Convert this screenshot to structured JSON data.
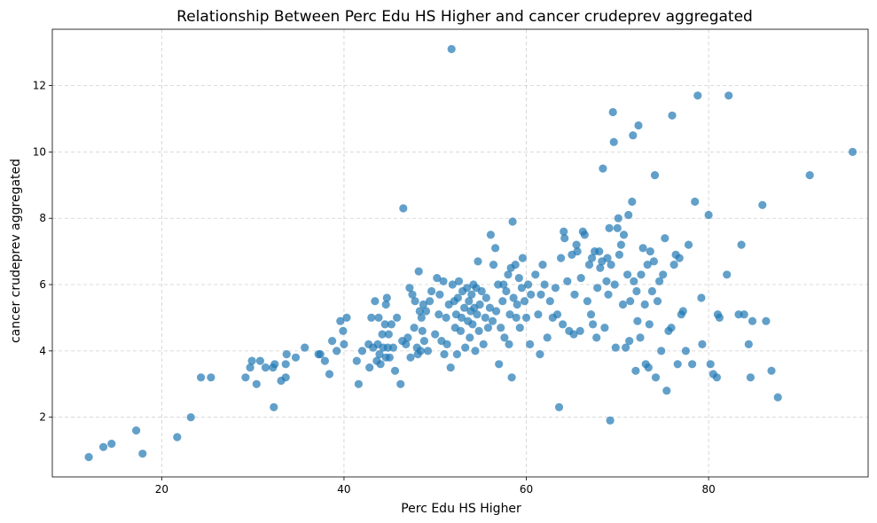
{
  "chart_data": {
    "type": "scatter",
    "title": "Relationship Between Perc Edu HS Higher and cancer crudeprev aggregated",
    "xlabel": "Perc Edu HS Higher",
    "ylabel": "cancer crudeprev aggregated",
    "xlim": [
      8,
      97.5
    ],
    "ylim": [
      0.2,
      13.7
    ],
    "xticks": [
      20,
      40,
      60,
      80
    ],
    "yticks": [
      2,
      4,
      6,
      8,
      10,
      12
    ],
    "grid": true,
    "marker_color": "#1f77b4",
    "marker_opacity": 0.7,
    "points": [
      [
        12,
        0.8
      ],
      [
        13.6,
        1.1
      ],
      [
        14.5,
        1.2
      ],
      [
        17.2,
        1.6
      ],
      [
        17.9,
        0.9
      ],
      [
        21.7,
        1.4
      ],
      [
        23.2,
        2.0
      ],
      [
        24.3,
        3.2
      ],
      [
        25.4,
        3.2
      ],
      [
        29.2,
        3.2
      ],
      [
        29.7,
        3.5
      ],
      [
        29.9,
        3.7
      ],
      [
        30.4,
        3.0
      ],
      [
        30.8,
        3.7
      ],
      [
        31.4,
        3.5
      ],
      [
        32.2,
        3.5
      ],
      [
        32.3,
        2.3
      ],
      [
        32.4,
        3.6
      ],
      [
        33.1,
        3.1
      ],
      [
        33.6,
        3.2
      ],
      [
        33.6,
        3.6
      ],
      [
        33.7,
        3.9
      ],
      [
        34.7,
        3.8
      ],
      [
        35.7,
        4.1
      ],
      [
        37.2,
        3.9
      ],
      [
        37.4,
        3.9
      ],
      [
        37.9,
        3.7
      ],
      [
        38.4,
        3.3
      ],
      [
        38.7,
        4.3
      ],
      [
        39.2,
        4.0
      ],
      [
        39.6,
        4.9
      ],
      [
        39.9,
        4.6
      ],
      [
        40.0,
        4.2
      ],
      [
        40.3,
        5.0
      ],
      [
        41.4,
        3.7
      ],
      [
        41.6,
        3.0
      ],
      [
        42.0,
        4.0
      ],
      [
        42.7,
        4.2
      ],
      [
        42.8,
        3.5
      ],
      [
        43.0,
        5.0
      ],
      [
        43.2,
        4.1
      ],
      [
        43.4,
        5.5
      ],
      [
        43.6,
        3.7
      ],
      [
        43.7,
        4.2
      ],
      [
        43.8,
        5.0
      ],
      [
        43.9,
        3.9
      ],
      [
        44.0,
        3.6
      ],
      [
        44.2,
        4.5
      ],
      [
        44.3,
        4.1
      ],
      [
        44.5,
        4.8
      ],
      [
        44.6,
        5.4
      ],
      [
        44.6,
        3.8
      ],
      [
        44.7,
        5.6
      ],
      [
        44.8,
        4.1
      ],
      [
        44.9,
        4.5
      ],
      [
        45.0,
        3.8
      ],
      [
        45.2,
        4.8
      ],
      [
        45.4,
        4.1
      ],
      [
        45.6,
        3.4
      ],
      [
        45.8,
        5.0
      ],
      [
        46.2,
        3.0
      ],
      [
        46.4,
        4.3
      ],
      [
        46.5,
        8.3
      ],
      [
        46.8,
        4.2
      ],
      [
        47.0,
        4.4
      ],
      [
        47.2,
        5.9
      ],
      [
        47.3,
        3.8
      ],
      [
        47.5,
        5.7
      ],
      [
        47.7,
        4.7
      ],
      [
        47.8,
        5.5
      ],
      [
        48.0,
        4.1
      ],
      [
        48.1,
        3.9
      ],
      [
        48.2,
        6.4
      ],
      [
        48.3,
        5.2
      ],
      [
        48.4,
        4.0
      ],
      [
        48.5,
        5.0
      ],
      [
        48.6,
        4.6
      ],
      [
        48.7,
        5.4
      ],
      [
        48.8,
        4.3
      ],
      [
        49.0,
        5.2
      ],
      [
        49.2,
        4.0
      ],
      [
        49.4,
        5.5
      ],
      [
        49.6,
        5.8
      ],
      [
        50.0,
        4.5
      ],
      [
        50.2,
        6.2
      ],
      [
        50.4,
        5.1
      ],
      [
        50.5,
        5.7
      ],
      [
        50.7,
        4.3
      ],
      [
        50.9,
        6.1
      ],
      [
        51.0,
        3.9
      ],
      [
        51.2,
        5.0
      ],
      [
        51.3,
        4.2
      ],
      [
        51.5,
        5.4
      ],
      [
        51.7,
        3.5
      ],
      [
        51.8,
        13.1
      ],
      [
        51.9,
        6.0
      ],
      [
        52.1,
        5.5
      ],
      [
        52.2,
        4.7
      ],
      [
        52.3,
        5.1
      ],
      [
        52.4,
        3.9
      ],
      [
        52.5,
        5.6
      ],
      [
        52.6,
        6.1
      ],
      [
        52.8,
        4.6
      ],
      [
        52.9,
        5.0
      ],
      [
        53.0,
        5.8
      ],
      [
        53.2,
        5.3
      ],
      [
        53.3,
        4.1
      ],
      [
        53.5,
        5.9
      ],
      [
        53.6,
        4.9
      ],
      [
        53.7,
        5.5
      ],
      [
        53.8,
        4.4
      ],
      [
        53.9,
        5.2
      ],
      [
        54.0,
        5.7
      ],
      [
        54.1,
        4.8
      ],
      [
        54.2,
        6.0
      ],
      [
        54.3,
        5.3
      ],
      [
        54.4,
        4.0
      ],
      [
        54.5,
        5.9
      ],
      [
        54.6,
        5.1
      ],
      [
        54.7,
        6.7
      ],
      [
        54.8,
        4.6
      ],
      [
        54.9,
        5.4
      ],
      [
        55.1,
        5.8
      ],
      [
        55.3,
        4.2
      ],
      [
        55.5,
        5.0
      ],
      [
        55.6,
        5.6
      ],
      [
        55.8,
        4.7
      ],
      [
        56.0,
        5.3
      ],
      [
        56.1,
        7.5
      ],
      [
        56.3,
        4.9
      ],
      [
        56.4,
        6.6
      ],
      [
        56.6,
        7.1
      ],
      [
        56.7,
        5.2
      ],
      [
        56.9,
        6.0
      ],
      [
        57.0,
        3.6
      ],
      [
        57.2,
        4.7
      ],
      [
        57.4,
        5.5
      ],
      [
        57.5,
        6.0
      ],
      [
        57.6,
        4.4
      ],
      [
        57.8,
        5.8
      ],
      [
        58.0,
        6.3
      ],
      [
        58.1,
        4.2
      ],
      [
        58.2,
        5.1
      ],
      [
        58.3,
        6.5
      ],
      [
        58.4,
        3.2
      ],
      [
        58.5,
        7.9
      ],
      [
        58.6,
        5.6
      ],
      [
        58.8,
        6.6
      ],
      [
        58.9,
        5.0
      ],
      [
        59.0,
        5.4
      ],
      [
        59.2,
        6.2
      ],
      [
        59.3,
        4.7
      ],
      [
        59.5,
        5.9
      ],
      [
        59.6,
        6.8
      ],
      [
        59.8,
        5.5
      ],
      [
        60.0,
        5.0
      ],
      [
        60.2,
        6.0
      ],
      [
        60.4,
        4.2
      ],
      [
        60.5,
        5.7
      ],
      [
        61.0,
        6.3
      ],
      [
        61.3,
        5.1
      ],
      [
        61.5,
        3.9
      ],
      [
        61.6,
        5.7
      ],
      [
        61.8,
        6.6
      ],
      [
        62.0,
        6.0
      ],
      [
        62.3,
        4.4
      ],
      [
        62.6,
        5.5
      ],
      [
        62.9,
        5.0
      ],
      [
        63.2,
        5.9
      ],
      [
        63.4,
        5.1
      ],
      [
        63.6,
        2.3
      ],
      [
        63.8,
        6.8
      ],
      [
        64.0,
        4.8
      ],
      [
        64.1,
        7.6
      ],
      [
        64.2,
        7.4
      ],
      [
        64.5,
        6.1
      ],
      [
        64.7,
        4.6
      ],
      [
        65.0,
        6.9
      ],
      [
        65.2,
        4.5
      ],
      [
        65.3,
        5.7
      ],
      [
        65.5,
        7.2
      ],
      [
        65.6,
        7.0
      ],
      [
        65.9,
        4.6
      ],
      [
        66.0,
        6.2
      ],
      [
        66.2,
        7.6
      ],
      [
        66.4,
        7.5
      ],
      [
        66.7,
        5.5
      ],
      [
        66.9,
        6.6
      ],
      [
        67.1,
        5.1
      ],
      [
        67.2,
        6.8
      ],
      [
        67.3,
        4.8
      ],
      [
        67.5,
        7.0
      ],
      [
        67.7,
        4.4
      ],
      [
        67.8,
        5.9
      ],
      [
        68.0,
        7.0
      ],
      [
        68.1,
        6.5
      ],
      [
        68.3,
        6.7
      ],
      [
        68.4,
        9.5
      ],
      [
        68.6,
        4.7
      ],
      [
        68.8,
        6.1
      ],
      [
        68.9,
        6.8
      ],
      [
        69.0,
        5.7
      ],
      [
        69.1,
        7.7
      ],
      [
        69.2,
        1.9
      ],
      [
        69.3,
        6.6
      ],
      [
        69.5,
        11.2
      ],
      [
        69.6,
        10.3
      ],
      [
        69.7,
        6.0
      ],
      [
        69.8,
        4.1
      ],
      [
        70.0,
        7.7
      ],
      [
        70.1,
        8.0
      ],
      [
        70.2,
        6.9
      ],
      [
        70.4,
        7.2
      ],
      [
        70.6,
        5.4
      ],
      [
        70.7,
        7.5
      ],
      [
        70.9,
        4.1
      ],
      [
        71.1,
        6.3
      ],
      [
        71.2,
        8.1
      ],
      [
        71.3,
        4.3
      ],
      [
        71.4,
        5.5
      ],
      [
        71.6,
        8.5
      ],
      [
        71.7,
        10.5
      ],
      [
        71.8,
        6.1
      ],
      [
        72.0,
        3.4
      ],
      [
        72.1,
        5.8
      ],
      [
        72.2,
        4.9
      ],
      [
        72.3,
        10.8
      ],
      [
        72.5,
        4.4
      ],
      [
        72.6,
        6.3
      ],
      [
        72.8,
        7.1
      ],
      [
        73.0,
        5.4
      ],
      [
        73.1,
        3.6
      ],
      [
        73.3,
        6.6
      ],
      [
        73.4,
        3.5
      ],
      [
        73.5,
        4.8
      ],
      [
        73.6,
        7.0
      ],
      [
        73.8,
        5.8
      ],
      [
        74.0,
        6.7
      ],
      [
        74.1,
        9.3
      ],
      [
        74.2,
        3.2
      ],
      [
        74.4,
        5.5
      ],
      [
        74.6,
        6.1
      ],
      [
        74.8,
        4.0
      ],
      [
        75.0,
        6.3
      ],
      [
        75.2,
        7.4
      ],
      [
        75.4,
        2.8
      ],
      [
        75.6,
        4.6
      ],
      [
        75.9,
        4.7
      ],
      [
        76.0,
        11.1
      ],
      [
        76.2,
        6.6
      ],
      [
        76.4,
        6.9
      ],
      [
        76.6,
        3.6
      ],
      [
        76.8,
        6.8
      ],
      [
        77.0,
        5.1
      ],
      [
        77.2,
        5.2
      ],
      [
        77.5,
        4.0
      ],
      [
        77.8,
        7.2
      ],
      [
        78.2,
        3.6
      ],
      [
        78.5,
        8.5
      ],
      [
        78.8,
        11.7
      ],
      [
        79.2,
        5.6
      ],
      [
        79.3,
        4.2
      ],
      [
        80.0,
        8.1
      ],
      [
        80.2,
        3.6
      ],
      [
        80.5,
        3.3
      ],
      [
        80.9,
        3.2
      ],
      [
        81.0,
        5.1
      ],
      [
        81.2,
        5.0
      ],
      [
        82.0,
        6.3
      ],
      [
        82.2,
        11.7
      ],
      [
        83.3,
        5.1
      ],
      [
        83.6,
        7.2
      ],
      [
        83.9,
        5.1
      ],
      [
        84.4,
        4.2
      ],
      [
        84.6,
        3.2
      ],
      [
        84.8,
        4.9
      ],
      [
        85.9,
        8.4
      ],
      [
        86.3,
        4.9
      ],
      [
        86.9,
        3.4
      ],
      [
        87.6,
        2.6
      ],
      [
        91.1,
        9.3
      ],
      [
        95.8,
        10.0
      ]
    ]
  }
}
